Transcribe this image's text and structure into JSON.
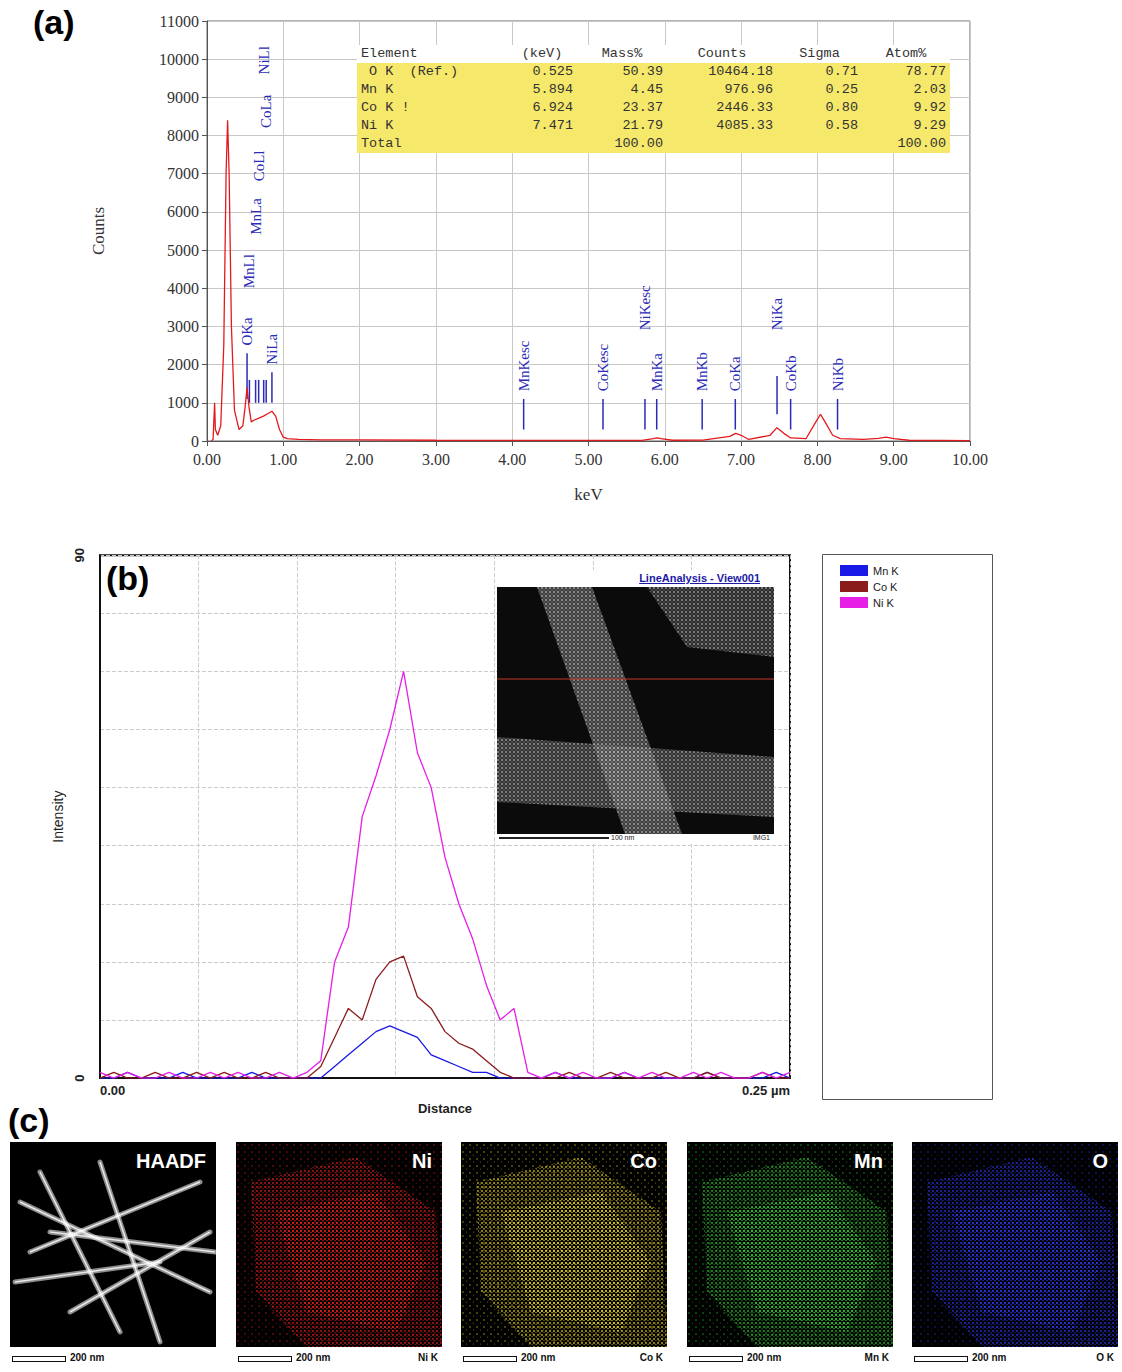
{
  "chart_data": [
    {
      "type": "line",
      "panel": "(a)",
      "x_label": "keV",
      "y_label": "Counts",
      "xlim": [
        0,
        10
      ],
      "ylim": [
        0,
        11000
      ],
      "xticks": [
        {
          "value": 0,
          "label": "0.00"
        },
        {
          "value": 1,
          "label": "1.00"
        },
        {
          "value": 2,
          "label": "2.00"
        },
        {
          "value": 3,
          "label": "3.00"
        },
        {
          "value": 4,
          "label": "4.00"
        },
        {
          "value": 5,
          "label": "5.00"
        },
        {
          "value": 6,
          "label": "6.00"
        },
        {
          "value": 7,
          "label": "7.00"
        },
        {
          "value": 8,
          "label": "8.00"
        },
        {
          "value": 9,
          "label": "9.00"
        },
        {
          "value": 10,
          "label": "10.00"
        }
      ],
      "yticks": [
        0,
        1000,
        2000,
        3000,
        4000,
        5000,
        6000,
        7000,
        8000,
        9000,
        10000,
        11000
      ],
      "grid": true,
      "color": "#e31a1c",
      "x": [
        0.06,
        0.08,
        0.1,
        0.11,
        0.14,
        0.18,
        0.22,
        0.25,
        0.27,
        0.29,
        0.32,
        0.36,
        0.42,
        0.47,
        0.5,
        0.525,
        0.55,
        0.58,
        0.62,
        0.68,
        0.74,
        0.8,
        0.85,
        0.9,
        0.95,
        1.0,
        1.05,
        1.2,
        1.5,
        2.0,
        3.0,
        4.0,
        5.0,
        5.7,
        5.85,
        5.9,
        5.95,
        6.1,
        6.5,
        6.85,
        6.93,
        7.0,
        7.1,
        7.38,
        7.47,
        7.56,
        7.65,
        7.85,
        7.98,
        8.04,
        8.1,
        8.2,
        8.3,
        8.6,
        8.8,
        8.9,
        9.0,
        9.2,
        10.0
      ],
      "values": [
        0,
        50,
        1000,
        300,
        150,
        400,
        2500,
        7000,
        8400,
        7000,
        3000,
        800,
        300,
        400,
        900,
        1400,
        900,
        500,
        550,
        600,
        650,
        720,
        780,
        650,
        300,
        100,
        60,
        40,
        30,
        30,
        20,
        15,
        15,
        15,
        60,
        80,
        60,
        20,
        25,
        120,
        200,
        150,
        40,
        150,
        350,
        200,
        80,
        60,
        500,
        700,
        500,
        150,
        60,
        40,
        70,
        100,
        60,
        20,
        10
      ],
      "annotations": [
        {
          "label": "OKa",
          "x": 0.525,
          "line": [
            1100,
            2300
          ],
          "text_y": 2500
        },
        {
          "label": "MnLl",
          "x": 0.556,
          "line": [
            1000,
            1600
          ],
          "text_y": 4000
        },
        {
          "label": "MnLa",
          "x": 0.637,
          "line": [
            1000,
            1600
          ],
          "text_y": 5400
        },
        {
          "label": "CoLl",
          "x": 0.677,
          "line": [
            1000,
            1600
          ],
          "text_y": 6800
        },
        {
          "label": "CoLa",
          "x": 0.776,
          "line": [
            1000,
            1600
          ],
          "text_y": 8200
        },
        {
          "label": "NiLl",
          "x": 0.743,
          "line": [
            1000,
            1600
          ],
          "text_y": 9600
        },
        {
          "label": "NiLa",
          "x": 0.851,
          "line": [
            1000,
            1800
          ],
          "text_y": 2000
        },
        {
          "label": "MnKesc",
          "x": 4.15,
          "line": [
            300,
            1100
          ],
          "text_y": 1300
        },
        {
          "label": "CoKesc",
          "x": 5.19,
          "line": [
            300,
            1100
          ],
          "text_y": 1300
        },
        {
          "label": "NiKesc",
          "x": 5.74,
          "line": [
            300,
            1100
          ],
          "text_y": 2900
        },
        {
          "label": "MnKa",
          "x": 5.894,
          "line": [
            300,
            1100
          ],
          "text_y": 1300
        },
        {
          "label": "MnKb",
          "x": 6.49,
          "line": [
            300,
            1100
          ],
          "text_y": 1300
        },
        {
          "label": "CoKa",
          "x": 6.924,
          "line": [
            300,
            1100
          ],
          "text_y": 1300
        },
        {
          "label": "NiKa",
          "x": 7.471,
          "line": [
            700,
            1700
          ],
          "text_y": 2900
        },
        {
          "label": "CoKb",
          "x": 7.649,
          "line": [
            300,
            1100
          ],
          "text_y": 1300
        },
        {
          "label": "NiKb",
          "x": 8.264,
          "line": [
            300,
            1100
          ],
          "text_y": 1300
        }
      ],
      "table": {
        "header": [
          "Element",
          "(keV)",
          "Mass%",
          "Counts",
          "Sigma",
          "Atom%"
        ],
        "rows": [
          [
            " O K  (Ref.)",
            "0.525",
            "50.39",
            "10464.18",
            "0.71",
            "78.77"
          ],
          [
            "Mn K",
            "5.894",
            "4.45",
            "976.96",
            "0.25",
            "2.03"
          ],
          [
            "Co K !",
            "6.924",
            "23.37",
            "2446.33",
            "0.80",
            "9.92"
          ],
          [
            "Ni K",
            "7.471",
            "21.79",
            "4085.33",
            "0.58",
            "9.29"
          ],
          [
            "Total",
            null,
            "100.00",
            null,
            null,
            "100.00"
          ]
        ]
      }
    },
    {
      "type": "line",
      "panel": "(b)",
      "x_label": "Distance",
      "y_label": "Intensity",
      "xlim": [
        0,
        0.25
      ],
      "ylim": [
        0,
        90
      ],
      "xticks": [
        {
          "value": 0,
          "label": "0.00"
        },
        {
          "value": 0.25,
          "label": "0.25 µm"
        }
      ],
      "yticks": [
        0,
        90
      ],
      "grid": true,
      "legend": "right",
      "x": [
        0,
        0.005,
        0.01,
        0.015,
        0.02,
        0.025,
        0.03,
        0.035,
        0.04,
        0.045,
        0.05,
        0.055,
        0.06,
        0.065,
        0.07,
        0.075,
        0.08,
        0.085,
        0.09,
        0.095,
        0.1,
        0.105,
        0.11,
        0.115,
        0.12,
        0.125,
        0.13,
        0.135,
        0.14,
        0.145,
        0.15,
        0.155,
        0.16,
        0.165,
        0.17,
        0.175,
        0.18,
        0.185,
        0.19,
        0.195,
        0.2,
        0.205,
        0.21,
        0.215,
        0.22,
        0.225,
        0.23,
        0.235,
        0.24,
        0.245,
        0.25
      ],
      "series": [
        {
          "name": "Mn K",
          "color": "#1a1ae6",
          "values": [
            0,
            0,
            1,
            0,
            0,
            0,
            1,
            0,
            0,
            0,
            0,
            1,
            0,
            0,
            0,
            0,
            0,
            2,
            4,
            6,
            8,
            9,
            8,
            7,
            4,
            3,
            2,
            1,
            1,
            0,
            0,
            0,
            0,
            1,
            0,
            0,
            0,
            0,
            1,
            0,
            0,
            0,
            0,
            0,
            1,
            0,
            0,
            0,
            0,
            1,
            0
          ]
        },
        {
          "name": "Co K",
          "color": "#8b1c1c",
          "values": [
            0,
            1,
            0,
            0,
            1,
            0,
            0,
            1,
            0,
            1,
            0,
            0,
            1,
            0,
            0,
            0,
            2,
            7,
            12,
            10,
            17,
            20,
            21,
            14,
            12,
            8,
            6,
            5,
            3,
            1,
            0,
            0,
            0,
            0,
            1,
            0,
            0,
            1,
            0,
            0,
            0,
            1,
            0,
            0,
            1,
            0,
            0,
            0,
            1,
            0,
            0
          ]
        },
        {
          "name": "Ni K",
          "color": "#e61ee6",
          "values": [
            1,
            0,
            1,
            0,
            0,
            1,
            0,
            0,
            1,
            0,
            1,
            0,
            0,
            1,
            0,
            1,
            3,
            20,
            26,
            45,
            52,
            60,
            70,
            56,
            50,
            38,
            30,
            24,
            16,
            10,
            12,
            1,
            0,
            1,
            0,
            1,
            0,
            0,
            1,
            0,
            1,
            0,
            0,
            1,
            0,
            1,
            0,
            0,
            1,
            0,
            1
          ]
        }
      ],
      "inset": {
        "title": "LineAnalysis - View001",
        "scale_bar": "100 nm",
        "label": "IMG1"
      }
    }
  ],
  "panel_c": {
    "letter": "(c)",
    "maps": [
      {
        "title": "HAADF",
        "color": "#ffffff",
        "scale_bar": "200 nm"
      },
      {
        "title": "Ni",
        "color": "#e0201c",
        "scale_bar": "200 nm",
        "signal": "Ni K"
      },
      {
        "title": "Co",
        "color": "#e8d21a",
        "scale_bar": "200 nm",
        "signal": "Co K"
      },
      {
        "title": "Mn",
        "color": "#2ecc2e",
        "scale_bar": "200 nm",
        "signal": "Mn K"
      },
      {
        "title": "O",
        "color": "#2a36e8",
        "scale_bar": "200 nm",
        "signal": "O K"
      }
    ]
  }
}
